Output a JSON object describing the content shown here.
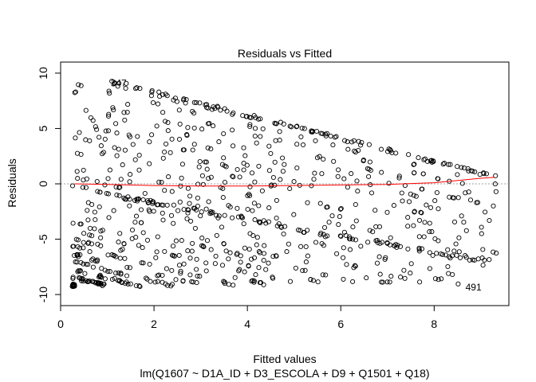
{
  "chart_data": {
    "type": "scatter",
    "title": "Residuals vs Fitted",
    "xlabel": "Fitted values",
    "ylabel": "Residuals",
    "subtitle": "lm(Q1607 ~ D1A_ID + D3_ESCOLA + D9 + Q1501 + Q18)",
    "xlim": [
      0,
      9.6
    ],
    "ylim": [
      -11,
      11
    ],
    "x_ticks": [
      0,
      2,
      4,
      6,
      8
    ],
    "y_ticks": [
      -10,
      -5,
      0,
      5,
      10
    ],
    "reference_line_y": 0,
    "grid": false,
    "colors": {
      "points": "#000000",
      "smoother": "#ff0000",
      "reference": "#a0a0a0"
    },
    "smoother": {
      "x": [
        0.3,
        1.0,
        2.0,
        3.0,
        4.0,
        5.0,
        6.0,
        7.0,
        8.0,
        9.0,
        9.3
      ],
      "y": [
        0.0,
        -0.05,
        -0.15,
        -0.2,
        -0.2,
        -0.15,
        -0.1,
        -0.05,
        0.1,
        0.5,
        0.6
      ]
    },
    "labeled_points": [
      {
        "label": "347",
        "x": 1.02,
        "y": 9.1
      },
      {
        "label": "491",
        "x": 8.62,
        "y": -9.35
      }
    ]
  }
}
